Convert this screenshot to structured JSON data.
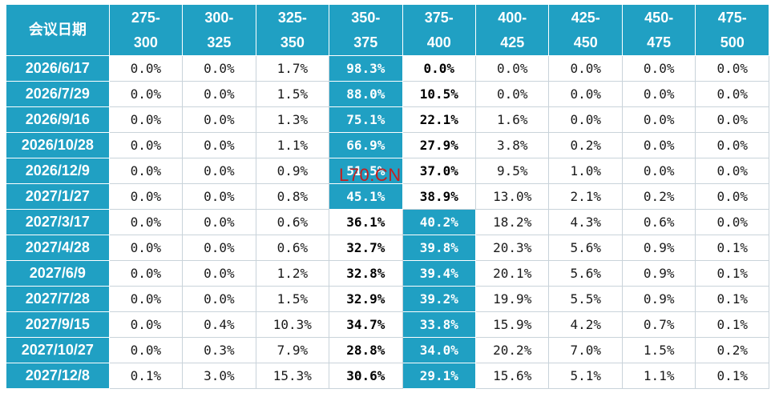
{
  "table": {
    "header": {
      "date_label": "会议日期",
      "ranges": [
        [
          "275-",
          "300"
        ],
        [
          "300-",
          "325"
        ],
        [
          "325-",
          "350"
        ],
        [
          "350-",
          "375"
        ],
        [
          "375-",
          "400"
        ],
        [
          "400-",
          "425"
        ],
        [
          "425-",
          "450"
        ],
        [
          "450-",
          "475"
        ],
        [
          "475-",
          "500"
        ]
      ]
    },
    "rows": [
      {
        "date": "2026/6/17",
        "values": [
          "0.0%",
          "0.0%",
          "1.7%",
          "98.3%",
          "0.0%",
          "0.0%",
          "0.0%",
          "0.0%",
          "0.0%"
        ],
        "hl": 3,
        "bold": 4
      },
      {
        "date": "2026/7/29",
        "values": [
          "0.0%",
          "0.0%",
          "1.5%",
          "88.0%",
          "10.5%",
          "0.0%",
          "0.0%",
          "0.0%",
          "0.0%"
        ],
        "hl": 3,
        "bold": 4
      },
      {
        "date": "2026/9/16",
        "values": [
          "0.0%",
          "0.0%",
          "1.3%",
          "75.1%",
          "22.1%",
          "1.6%",
          "0.0%",
          "0.0%",
          "0.0%"
        ],
        "hl": 3,
        "bold": 4
      },
      {
        "date": "2026/10/28",
        "values": [
          "0.0%",
          "0.0%",
          "1.1%",
          "66.9%",
          "27.9%",
          "3.8%",
          "0.2%",
          "0.0%",
          "0.0%"
        ],
        "hl": 3,
        "bold": 4
      },
      {
        "date": "2026/12/9",
        "values": [
          "0.0%",
          "0.0%",
          "0.9%",
          "51.5%",
          "37.0%",
          "9.5%",
          "1.0%",
          "0.0%",
          "0.0%"
        ],
        "hl": 3,
        "bold": 4
      },
      {
        "date": "2027/1/27",
        "values": [
          "0.0%",
          "0.0%",
          "0.8%",
          "45.1%",
          "38.9%",
          "13.0%",
          "2.1%",
          "0.2%",
          "0.0%"
        ],
        "hl": 3,
        "bold": 4
      },
      {
        "date": "2027/3/17",
        "values": [
          "0.0%",
          "0.0%",
          "0.6%",
          "36.1%",
          "40.2%",
          "18.2%",
          "4.3%",
          "0.6%",
          "0.0%"
        ],
        "hl": 4,
        "bold": 3
      },
      {
        "date": "2027/4/28",
        "values": [
          "0.0%",
          "0.0%",
          "0.6%",
          "32.7%",
          "39.8%",
          "20.3%",
          "5.6%",
          "0.9%",
          "0.1%"
        ],
        "hl": 4,
        "bold": 3
      },
      {
        "date": "2027/6/9",
        "values": [
          "0.0%",
          "0.0%",
          "1.2%",
          "32.8%",
          "39.4%",
          "20.1%",
          "5.6%",
          "0.9%",
          "0.1%"
        ],
        "hl": 4,
        "bold": 3
      },
      {
        "date": "2027/7/28",
        "values": [
          "0.0%",
          "0.0%",
          "1.5%",
          "32.9%",
          "39.2%",
          "19.9%",
          "5.5%",
          "0.9%",
          "0.1%"
        ],
        "hl": 4,
        "bold": 3
      },
      {
        "date": "2027/9/15",
        "values": [
          "0.0%",
          "0.4%",
          "10.3%",
          "34.7%",
          "33.8%",
          "15.9%",
          "4.2%",
          "0.7%",
          "0.1%"
        ],
        "hl": 4,
        "bold": 3
      },
      {
        "date": "2027/10/27",
        "values": [
          "0.0%",
          "0.3%",
          "7.9%",
          "28.8%",
          "34.0%",
          "20.2%",
          "7.0%",
          "1.5%",
          "0.2%"
        ],
        "hl": 4,
        "bold": 3
      },
      {
        "date": "2027/12/8",
        "values": [
          "0.1%",
          "3.0%",
          "15.3%",
          "30.6%",
          "29.1%",
          "15.6%",
          "5.1%",
          "1.1%",
          "0.1%"
        ],
        "hl": 4,
        "bold": 3
      }
    ],
    "colors": {
      "header_bg": "#20a0c3",
      "highlight_bg": "#20a0c3",
      "watermark": "#c41e1e"
    }
  },
  "watermark": "L70.CN"
}
